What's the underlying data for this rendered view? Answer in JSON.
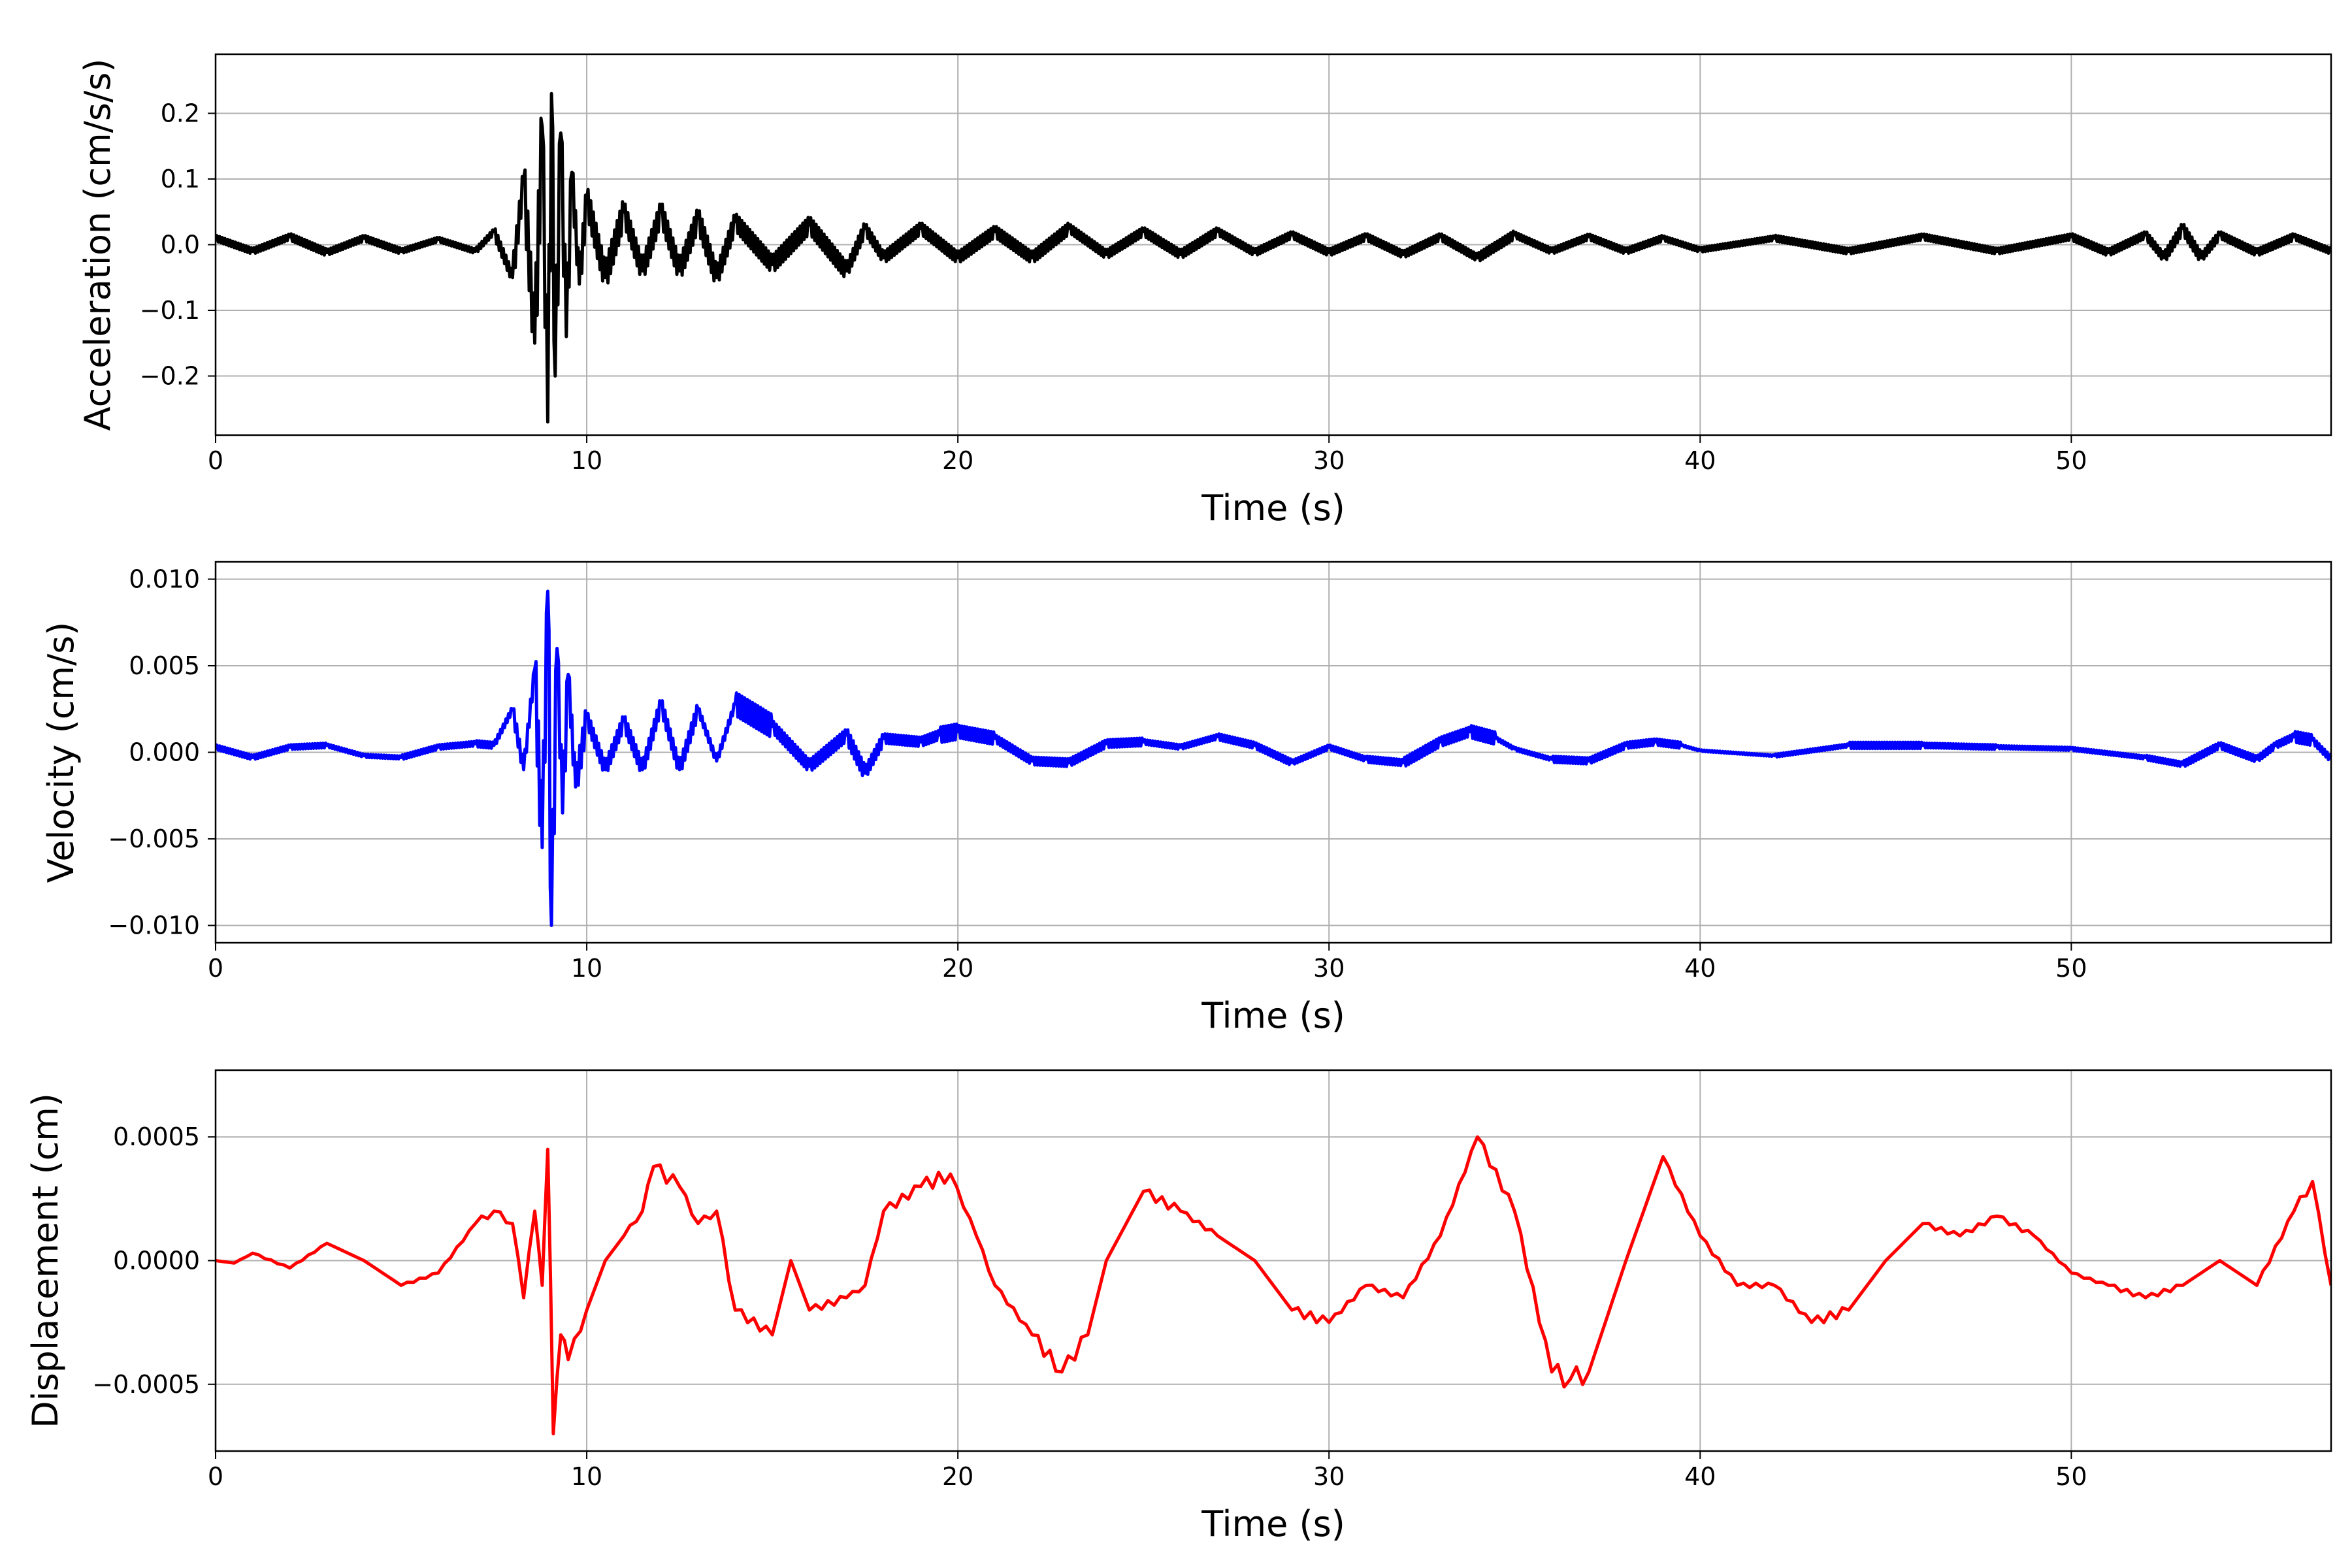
{
  "chart_data": [
    {
      "type": "line",
      "title": "",
      "xlabel": "Time (s)",
      "ylabel": "Acceleration (cm/s/s)",
      "xlim": [
        0,
        57
      ],
      "ylim": [
        -0.29,
        0.29
      ],
      "xticks": [
        0,
        10,
        20,
        30,
        40,
        50
      ],
      "xtick_labels": [
        "0",
        "10",
        "20",
        "30",
        "40",
        "50"
      ],
      "yticks": [
        0.2,
        0.1,
        0.0,
        -0.1,
        -0.2
      ],
      "ytick_labels": [
        "0.2",
        "0.1",
        "0.0",
        "−0.1",
        "−0.2"
      ],
      "grid": true,
      "color": "#000000",
      "series": [
        {
          "x": [
            0,
            1,
            2,
            3,
            4,
            5,
            6,
            7,
            7.5,
            8,
            8.3,
            8.6,
            8.8,
            8.95,
            9.05,
            9.15,
            9.3,
            9.45,
            9.6,
            9.8,
            10,
            10.5,
            11,
            11.5,
            12,
            12.5,
            13,
            13.5,
            14,
            15,
            16,
            17,
            17.5,
            18,
            19,
            20,
            21,
            22,
            23,
            24,
            25,
            26,
            27,
            28,
            29,
            30,
            31,
            32,
            33,
            34,
            35,
            36,
            37,
            38,
            39,
            40,
            42,
            44,
            46,
            48,
            50,
            51,
            52,
            52.5,
            53,
            53.5,
            54,
            55,
            56,
            57
          ],
          "y": [
            0.01,
            -0.01,
            0.012,
            -0.012,
            0.01,
            -0.01,
            0.008,
            -0.01,
            0.02,
            -0.05,
            0.1,
            -0.15,
            0.18,
            -0.27,
            0.23,
            -0.2,
            0.17,
            -0.14,
            0.11,
            -0.06,
            0.07,
            -0.05,
            0.05,
            -0.04,
            0.05,
            -0.04,
            0.04,
            -0.05,
            0.035,
            -0.03,
            0.03,
            -0.04,
            0.025,
            -0.02,
            0.025,
            -0.02,
            0.02,
            -0.02,
            0.025,
            -0.015,
            0.02,
            -0.015,
            0.02,
            -0.012,
            0.015,
            -0.012,
            0.012,
            -0.015,
            0.012,
            -0.02,
            0.015,
            -0.01,
            0.012,
            -0.01,
            0.01,
            -0.008,
            0.01,
            -0.01,
            0.012,
            -0.01,
            0.012,
            -0.012,
            0.015,
            -0.02,
            0.025,
            -0.02,
            0.015,
            -0.012,
            0.012,
            -0.01
          ]
        }
      ]
    },
    {
      "type": "line",
      "title": "",
      "xlabel": "Time (s)",
      "ylabel": "Velocity (cm/s)",
      "xlim": [
        0,
        57
      ],
      "ylim": [
        -0.011,
        0.011
      ],
      "xticks": [
        0,
        10,
        20,
        30,
        40,
        50
      ],
      "xtick_labels": [
        "0",
        "10",
        "20",
        "30",
        "40",
        "50"
      ],
      "yticks": [
        0.01,
        0.005,
        0.0,
        -0.005,
        -0.01
      ],
      "ytick_labels": [
        "0.010",
        "0.005",
        "0.000",
        "−0.005",
        "−0.010"
      ],
      "grid": true,
      "color": "#0000ff",
      "series": [
        {
          "x": [
            0,
            1,
            2,
            3,
            4,
            5,
            6,
            7,
            7.5,
            8,
            8.3,
            8.6,
            8.8,
            8.95,
            9.05,
            9.2,
            9.35,
            9.5,
            9.7,
            10,
            10.5,
            11,
            11.5,
            12,
            12.5,
            13,
            13.5,
            14,
            15,
            16,
            17,
            17.5,
            18,
            19,
            19.5,
            20,
            21,
            22,
            23,
            24,
            25,
            26,
            27,
            28,
            29,
            30,
            31,
            32,
            33,
            33.8,
            34.5,
            35,
            36,
            37,
            38,
            38.8,
            39.5,
            40,
            42,
            44,
            46,
            48,
            50,
            52,
            53,
            54,
            55,
            55.5,
            56,
            56.5,
            57
          ],
          "y": [
            0.0003,
            -0.0003,
            0.0003,
            0.0004,
            -0.0002,
            -0.0003,
            0.0003,
            0.0005,
            0.0004,
            0.0025,
            -0.001,
            0.0048,
            -0.0055,
            0.0093,
            -0.01,
            0.006,
            -0.0035,
            0.0045,
            -0.002,
            0.002,
            -0.001,
            0.0018,
            -0.001,
            0.0028,
            -0.001,
            0.0025,
            -0.0005,
            0.0028,
            0.0015,
            -0.0008,
            0.001,
            -0.0012,
            0.0008,
            0.0006,
            0.001,
            0.0012,
            0.0008,
            -0.0005,
            -0.0006,
            0.0005,
            0.0006,
            0.0003,
            0.0009,
            0.0004,
            -0.0006,
            0.0003,
            -0.0004,
            -0.0006,
            0.0006,
            0.0012,
            0.0008,
            0.0002,
            -0.0004,
            -0.0005,
            0.0004,
            0.0006,
            0.0004,
            0.0001,
            -0.0002,
            0.0004,
            0.0004,
            0.0003,
            0.0002,
            -0.0003,
            -0.0007,
            0.0004,
            -0.0004,
            0.0004,
            0.0009,
            0.0007,
            -0.0004
          ]
        }
      ]
    },
    {
      "type": "line",
      "title": "",
      "xlabel": "Time (s)",
      "ylabel": "Displacement (cm)",
      "xlim": [
        0,
        57
      ],
      "ylim": [
        -0.00077,
        0.00077
      ],
      "xticks": [
        0,
        10,
        20,
        30,
        40,
        50
      ],
      "xtick_labels": [
        "0",
        "10",
        "20",
        "30",
        "40",
        "50"
      ],
      "yticks": [
        0.0005,
        0.0,
        -0.0005
      ],
      "ytick_labels": [
        "0.0005",
        "0.0000",
        "−0.0005"
      ],
      "grid": true,
      "color": "#ff0000",
      "series": [
        {
          "x": [
            0,
            0.5,
            1,
            2,
            3,
            4,
            5,
            6,
            7,
            7.5,
            8,
            8.3,
            8.6,
            8.8,
            8.95,
            9.1,
            9.3,
            9.5,
            10,
            10.5,
            11,
            11.5,
            11.8,
            12.5,
            13,
            13.5,
            14,
            15,
            15.5,
            16,
            17,
            17.5,
            18,
            19,
            19.8,
            20.5,
            21,
            22,
            22.8,
            23.5,
            24,
            25,
            26,
            27,
            28,
            29,
            30,
            31,
            32,
            33,
            34,
            35,
            36,
            36.5,
            37,
            38,
            39,
            40,
            41,
            42,
            43,
            44,
            45,
            46,
            47,
            48,
            49,
            50,
            51,
            52,
            53,
            54,
            55,
            56,
            56.5,
            57
          ],
          "y": [
            0.0,
            -1e-05,
            3e-05,
            -3e-05,
            7e-05,
            0.0,
            -0.0001,
            -5e-05,
            0.00015,
            0.0002,
            0.00015,
            -0.00015,
            0.0002,
            -0.0001,
            0.00045,
            -0.0007,
            -0.0003,
            -0.0004,
            -0.0002,
            0.0,
            0.0001,
            0.0002,
            0.00038,
            0.0003,
            0.00015,
            0.0002,
            -0.0002,
            -0.0003,
            0.0,
            -0.0002,
            -0.00015,
            -0.0001,
            0.0002,
            0.0003,
            0.00035,
            0.0001,
            -0.0001,
            -0.0003,
            -0.00045,
            -0.0003,
            0.0,
            0.00028,
            0.0002,
            0.0001,
            0.0,
            -0.0002,
            -0.00025,
            -0.0001,
            -0.00015,
            0.0001,
            0.0005,
            0.0002,
            -0.00045,
            -0.00048,
            -0.00045,
            0.0,
            0.00042,
            0.0001,
            -0.0001,
            -0.0001,
            -0.00025,
            -0.0002,
            0.0,
            0.00015,
            0.0001,
            0.00018,
            0.0001,
            -5e-05,
            -0.0001,
            -0.00015,
            -0.0001,
            0.0,
            -0.0001,
            0.0002,
            0.00032,
            -0.0001
          ]
        }
      ]
    }
  ]
}
